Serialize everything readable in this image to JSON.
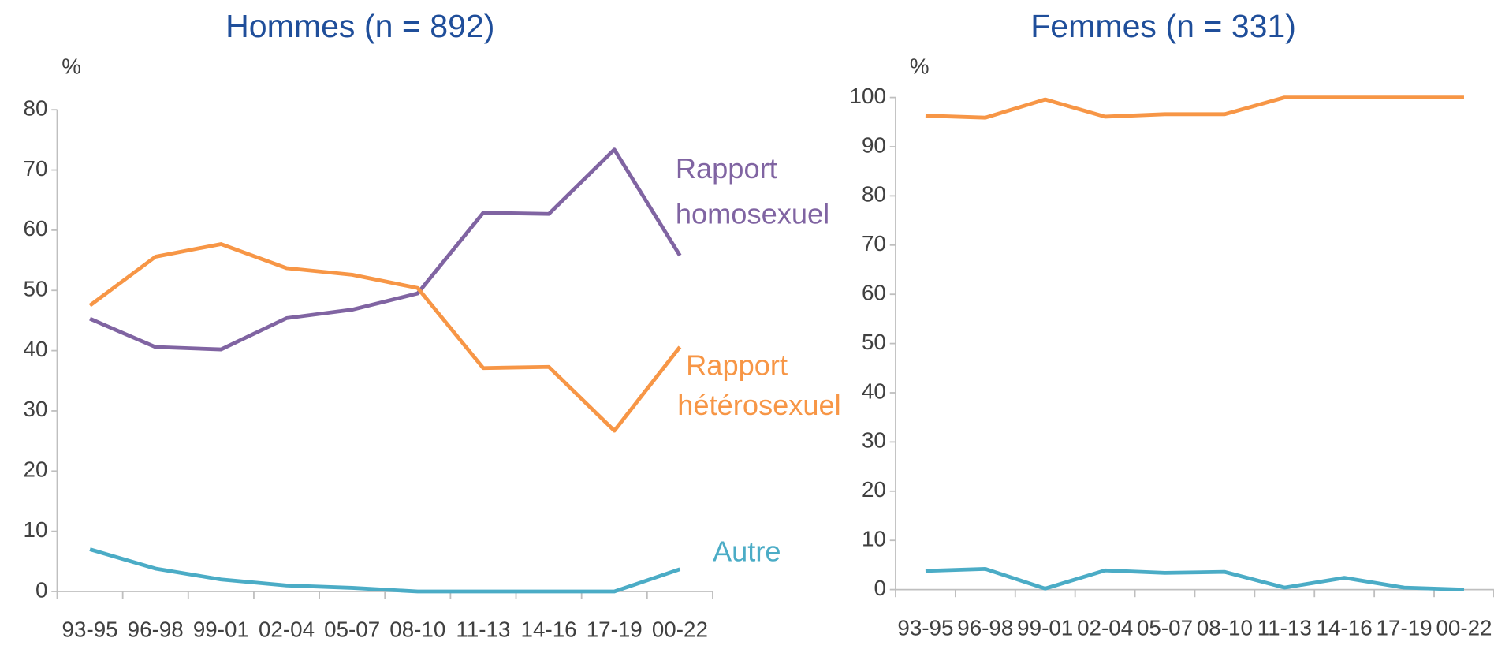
{
  "chart_data": [
    {
      "type": "line",
      "title": "Hommes (n = 892)",
      "y_label": "%",
      "categories": [
        "93-95",
        "96-98",
        "99-01",
        "02-04",
        "05-07",
        "08-10",
        "11-13",
        "14-16",
        "17-19",
        "00-22"
      ],
      "ylim": [
        0,
        80
      ],
      "yticks": [
        0,
        10,
        20,
        30,
        40,
        50,
        60,
        70,
        80
      ],
      "series": [
        {
          "name": "Rapport homosexuel",
          "color": "#8064a2",
          "values": [
            45.3,
            40.6,
            40.2,
            45.4,
            46.8,
            49.5,
            62.9,
            62.7,
            73.4,
            55.8
          ]
        },
        {
          "name": "Rapport hétérosexuel",
          "color": "#f79646",
          "values": [
            47.5,
            55.6,
            57.7,
            53.7,
            52.6,
            50.4,
            37.1,
            37.3,
            26.7,
            40.6
          ]
        },
        {
          "name": "Autre",
          "color": "#4bacc6",
          "values": [
            7.0,
            3.8,
            2.0,
            1.0,
            0.6,
            0,
            0,
            0,
            0,
            3.7
          ]
        }
      ]
    },
    {
      "type": "line",
      "title": "Femmes (n = 331)",
      "y_label": "%",
      "categories": [
        "93-95",
        "96-98",
        "99-01",
        "02-04",
        "05-07",
        "08-10",
        "11-13",
        "14-16",
        "17-19",
        "00-22"
      ],
      "ylim": [
        0,
        100
      ],
      "yticks": [
        0,
        10,
        20,
        30,
        40,
        50,
        60,
        70,
        80,
        90,
        100
      ],
      "series": [
        {
          "color": "#f79646",
          "values": [
            96.3,
            95.9,
            99.6,
            96.1,
            96.6,
            96.6,
            100,
            100,
            100,
            100
          ]
        },
        {
          "color": "#4bacc6",
          "values": [
            3.8,
            4.2,
            0.2,
            3.9,
            3.4,
            3.6,
            0.4,
            2.4,
            0.4,
            0
          ]
        }
      ]
    }
  ]
}
